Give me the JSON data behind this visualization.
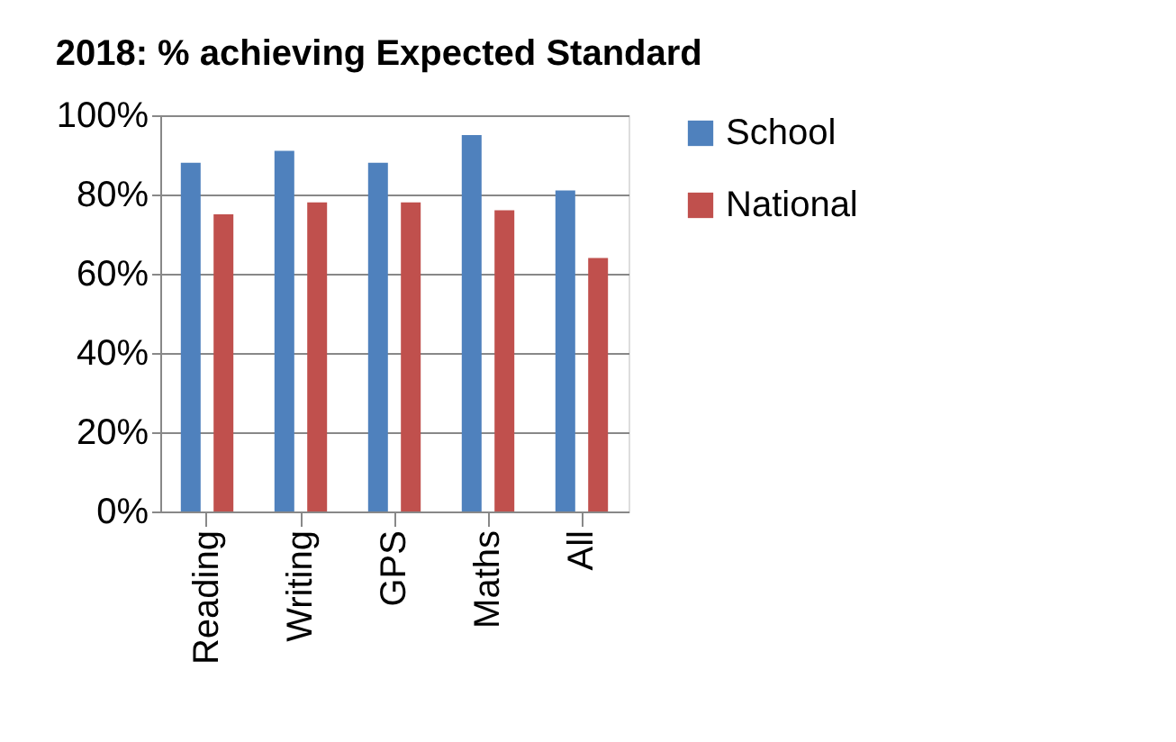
{
  "chart_data": {
    "type": "bar",
    "title": "2018:  % achieving Expected Standard",
    "categories": [
      "Reading",
      "Writing",
      "GPS",
      "Maths",
      "All"
    ],
    "series": [
      {
        "name": "School",
        "color": "#4f81bd",
        "values": [
          88,
          91,
          88,
          95,
          81
        ]
      },
      {
        "name": "National",
        "color": "#c0504d",
        "values": [
          75,
          78,
          78,
          76,
          64
        ]
      }
    ],
    "ylim": [
      0,
      100
    ],
    "yticks": [
      {
        "value": 0,
        "label": "0%"
      },
      {
        "value": 20,
        "label": "20%"
      },
      {
        "value": 40,
        "label": "40%"
      },
      {
        "value": 60,
        "label": "60%"
      },
      {
        "value": 80,
        "label": "80%"
      },
      {
        "value": 100,
        "label": "100%"
      }
    ],
    "grid": "y",
    "legend": "right"
  }
}
